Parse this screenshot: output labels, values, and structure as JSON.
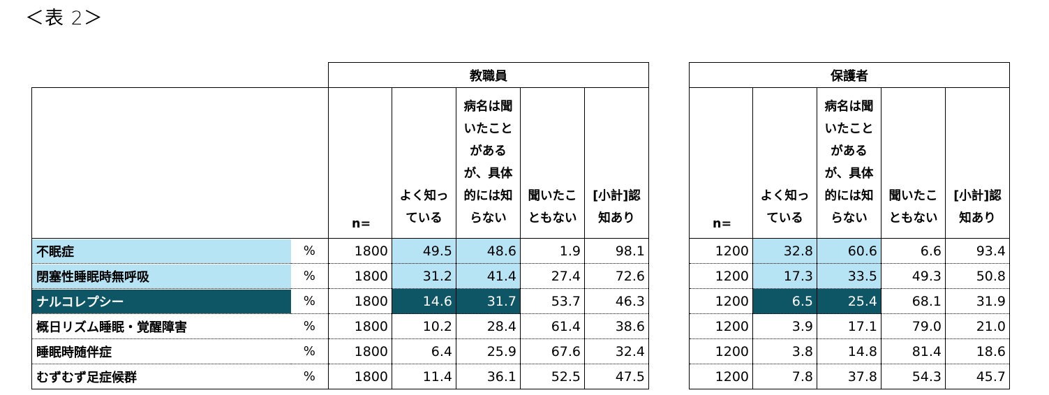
{
  "title": "＜表 2＞",
  "teachers": {
    "group_label": "教職員",
    "n_label": "n=",
    "columns": [
      "よく知っ\nている",
      "病名は聞\nいたこと\nがある\nが、具体\n的には知\nらない",
      "聞いたこ\nともない",
      "[小計]認\n知あり"
    ],
    "rows": [
      {
        "n": "1800",
        "values": [
          "49.5",
          "48.6",
          "1.9",
          "98.1"
        ]
      },
      {
        "n": "1800",
        "values": [
          "31.2",
          "41.4",
          "27.4",
          "72.6"
        ]
      },
      {
        "n": "1800",
        "values": [
          "14.6",
          "31.7",
          "53.7",
          "46.3"
        ]
      },
      {
        "n": "1800",
        "values": [
          "10.2",
          "28.4",
          "61.4",
          "38.6"
        ]
      },
      {
        "n": "1800",
        "values": [
          "6.4",
          "25.9",
          "67.6",
          "32.4"
        ]
      },
      {
        "n": "1800",
        "values": [
          "11.4",
          "36.1",
          "52.5",
          "47.5"
        ]
      }
    ]
  },
  "parents": {
    "group_label": "保護者",
    "n_label": "n=",
    "columns": [
      "よく知っ\nている",
      "病名は聞\nいたこと\nがある\nが、具体\n的には知\nらない",
      "聞いたこ\nともない",
      "[小計]認\n知あり"
    ],
    "rows": [
      {
        "n": "1200",
        "values": [
          "32.8",
          "60.6",
          "6.6",
          "93.4"
        ]
      },
      {
        "n": "1200",
        "values": [
          "17.3",
          "33.5",
          "49.3",
          "50.8"
        ]
      },
      {
        "n": "1200",
        "values": [
          "6.5",
          "25.4",
          "68.1",
          "31.9"
        ]
      },
      {
        "n": "1200",
        "values": [
          "3.9",
          "17.1",
          "79.0",
          "21.0"
        ]
      },
      {
        "n": "1200",
        "values": [
          "3.8",
          "14.8",
          "81.4",
          "18.6"
        ]
      },
      {
        "n": "1200",
        "values": [
          "7.8",
          "37.8",
          "54.3",
          "45.7"
        ]
      }
    ]
  },
  "row_labels": [
    "不眠症",
    "閉塞性睡眠時無呼吸",
    "ナルコレプシー",
    "概日リズム睡眠・覚醒障害",
    "睡眠時随伴症",
    "むずむず足症候群"
  ],
  "unit": "%",
  "colors": {
    "highlight_light": "#b7e4f4",
    "highlight_dark": "#0e5566"
  }
}
